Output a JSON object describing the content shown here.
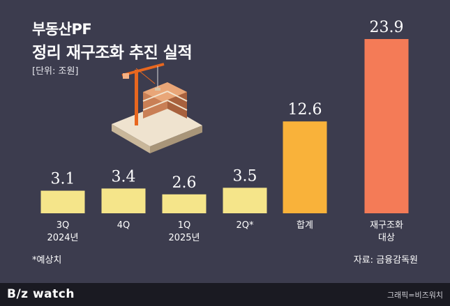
{
  "header": {
    "title_line1": "부동산PF",
    "title_line2": "정리 재구조화 추진 실적",
    "unit": "[단위: 조원]"
  },
  "chart_data": {
    "type": "bar",
    "categories": [
      [
        "3Q",
        "2024년"
      ],
      [
        "4Q"
      ],
      [
        "1Q",
        "2025년"
      ],
      [
        "2Q*"
      ],
      [
        "합계"
      ],
      [
        "재구조화",
        "대상"
      ]
    ],
    "values": [
      3.1,
      3.4,
      2.6,
      3.5,
      12.6,
      23.9
    ],
    "value_labels": [
      "3.1",
      "3.4",
      "2.6",
      "3.5",
      "12.6",
      "23.9"
    ],
    "colors": [
      "#f5e58a",
      "#f5e58a",
      "#f5e58a",
      "#f5e58a",
      "#f9b23a",
      "#f47b57"
    ],
    "ylim": [
      0,
      23.9
    ],
    "grid": false,
    "legend": "none"
  },
  "footer": {
    "note": "*예상치",
    "source": "자료: 금융감독원",
    "logo": "B/z watch",
    "credit": "그래픽=비즈워치"
  }
}
